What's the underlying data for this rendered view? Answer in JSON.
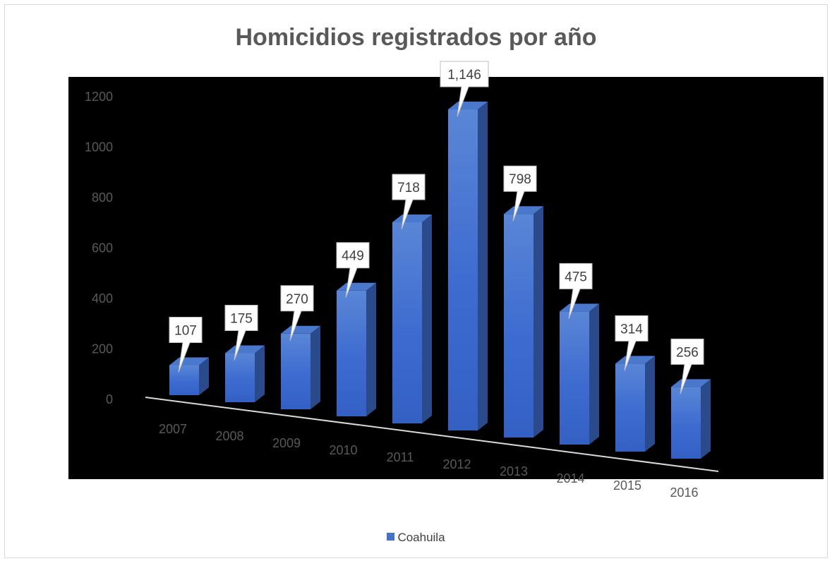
{
  "chart_data": {
    "type": "bar",
    "title": "Homicidios registrados por año",
    "categories": [
      "2007",
      "2008",
      "2009",
      "2010",
      "2011",
      "2012",
      "2013",
      "2014",
      "2015",
      "2016"
    ],
    "series": [
      {
        "name": "Coahuila",
        "values": [
          107,
          175,
          270,
          449,
          718,
          1146,
          798,
          475,
          314,
          256
        ],
        "data_labels": [
          "107",
          "175",
          "270",
          "449",
          "718",
          "1,146",
          "798",
          "475",
          "314",
          "256"
        ],
        "color": "#4472c4"
      }
    ],
    "y_ticks": [
      "0",
      "200",
      "400",
      "600",
      "800",
      "1000",
      "1200"
    ],
    "ylim": [
      0,
      1200
    ],
    "xlabel": "",
    "ylabel": "",
    "legend_position": "bottom",
    "style": "3d-perspective-columns",
    "plot_background": "#000000",
    "tick_label_color": "#595959"
  }
}
